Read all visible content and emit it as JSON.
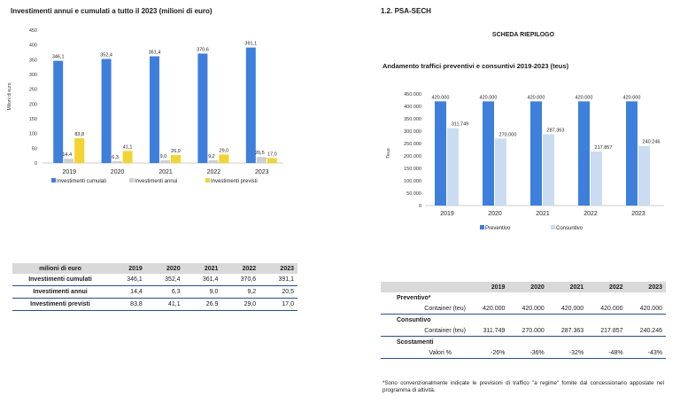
{
  "left": {
    "title": "Investimenti annui e cumulati a tutto il 2023 (milioni di euro)",
    "table": {
      "header": [
        "milioni di euro",
        "2019",
        "2020",
        "2021",
        "2022",
        "2023"
      ],
      "rows": [
        {
          "label": "Investimenti cumulati",
          "values": [
            "346,1",
            "352,4",
            "361,4",
            "370,6",
            "391,1"
          ]
        },
        {
          "label": "Investimenti annui",
          "values": [
            "14,4",
            "6,3",
            "9,0",
            "9,2",
            "20,5"
          ]
        },
        {
          "label": "Investimenti previsti",
          "values": [
            "83,8",
            "41,1",
            "26.9",
            "29,0",
            "17,0"
          ]
        }
      ]
    }
  },
  "right": {
    "section": "1.2. PSA-SECH",
    "subtitle": "SCHEDA RIEPILOGO",
    "chart_title": "Andamento traffici preventivi e consuntivi 2019-2023 (teus)",
    "table": {
      "header": [
        "",
        "2019",
        "2020",
        "2021",
        "2022",
        "2023"
      ],
      "groups": [
        {
          "title": "Preventivo*",
          "row_label": "Container (teu)",
          "values": [
            "420.000",
            "420.000",
            "420.000",
            "420.000",
            "420.000"
          ]
        },
        {
          "title": "Consuntivo",
          "row_label": "Container (teu)",
          "values": [
            "311.749",
            "270.000",
            "287.363",
            "217.857",
            "240.246"
          ]
        },
        {
          "title": "Scostamenti",
          "row_label": "Valori %",
          "values": [
            "-26%",
            "-36%",
            "-32%",
            "-48%",
            "-43%"
          ]
        }
      ]
    },
    "note": "*Sono convenzionalmente indicate le previsioni di traffico \"a regime\" fornite dal concessionario appostate nel programma di attività."
  },
  "colors": {
    "blue": "#3f7fdc",
    "blueLight": "#c9dcf2",
    "yellow": "#f2d432",
    "gray": "#cfcfcf"
  },
  "chart_data": [
    {
      "type": "bar",
      "title": "Investimenti annui e cumulati a tutto il 2023 (milioni di euro)",
      "ylabel": "Milioni di euro",
      "ylim": [
        0,
        450
      ],
      "yticks": [
        "0",
        "50",
        "100",
        "150",
        "200",
        "250",
        "300",
        "350",
        "400",
        "450"
      ],
      "categories": [
        "2019",
        "2020",
        "2021",
        "2022",
        "2023"
      ],
      "series": [
        {
          "name": "Investimenti cumulati",
          "values": [
            346.1,
            352.4,
            361.4,
            370.6,
            391.1
          ],
          "labels": [
            "346,1",
            "352,4",
            "361,4",
            "370,6",
            "391,1"
          ]
        },
        {
          "name": "Investimenti annui",
          "values": [
            14.4,
            6.3,
            9.0,
            9.2,
            20.5
          ],
          "labels": [
            "14,4",
            "6,3",
            "9,0",
            "9,2",
            "20,5"
          ]
        },
        {
          "name": "Investimenti previsti",
          "values": [
            83.8,
            41.1,
            26.9,
            29.0,
            17.0
          ],
          "labels": [
            "83,8",
            "41,1",
            "26,9",
            "29,0",
            "17,0"
          ]
        }
      ],
      "legend": "bottom"
    },
    {
      "type": "bar",
      "title": "Andamento traffici preventivi e consuntivi 2019-2023 (teus)",
      "ylabel": "Teus",
      "ylim": [
        0,
        450000
      ],
      "yticks": [
        "0",
        "50.000",
        "100.000",
        "150.000",
        "200.000",
        "250.000",
        "300.000",
        "350.000",
        "400.000",
        "450.000"
      ],
      "categories": [
        "2019",
        "2020",
        "2021",
        "2022",
        "2023"
      ],
      "series": [
        {
          "name": "Preventivo",
          "values": [
            420000,
            420000,
            420000,
            420000,
            420000
          ],
          "labels": [
            "420.000",
            "420.000",
            "420.000",
            "420.000",
            "420.000"
          ]
        },
        {
          "name": "Consuntivo",
          "values": [
            311749,
            270000,
            287363,
            217857,
            240246
          ],
          "labels": [
            "311.749",
            "270.000",
            "287.363",
            "217.857",
            "240.246"
          ]
        }
      ],
      "legend": "bottom"
    }
  ]
}
